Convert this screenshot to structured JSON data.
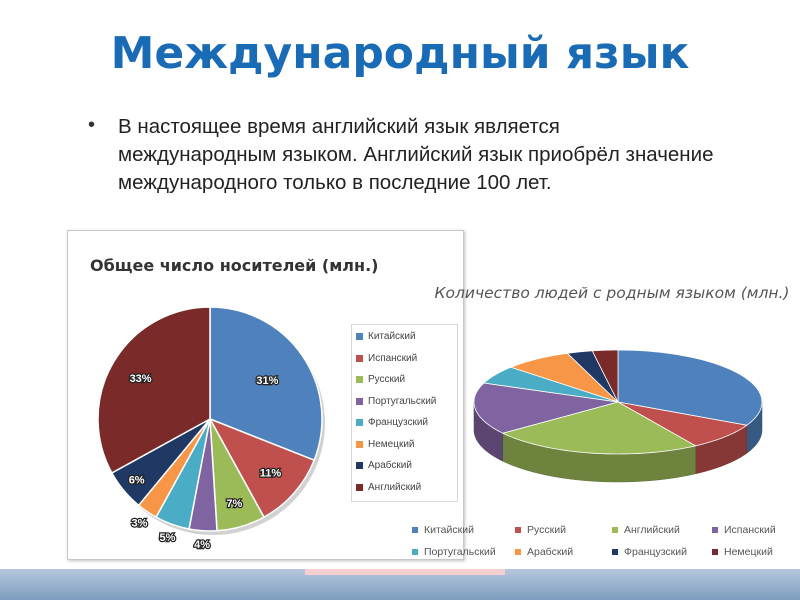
{
  "slide": {
    "title": "Международный язык",
    "bullet": "В настоящее время английский язык является международным языком. Английский язык приобрёл значение международного только в последние 100 лет."
  },
  "chart_data": [
    {
      "type": "pie",
      "title": "Общее число носителей (млн.)",
      "categories": [
        "Китайский",
        "Испанский",
        "Русский",
        "Португальский",
        "Французский",
        "Немецкий",
        "Арабский",
        "Английский"
      ],
      "values": [
        31,
        11,
        7,
        4,
        5,
        3,
        6,
        33
      ],
      "value_labels": [
        "31%",
        "11%",
        "7%",
        "4%",
        "5%",
        "3%",
        "6%",
        "33%"
      ],
      "colors": [
        "#4f81bd",
        "#c0504d",
        "#9bbb59",
        "#8064a2",
        "#4bacc6",
        "#f79646",
        "#1f3864",
        "#7b2a2a"
      ],
      "legend": "right"
    },
    {
      "type": "pie",
      "title": "Количество людей с родным языком (млн.)",
      "categories": [
        "Китайский",
        "Русский",
        "Английский",
        "Испанский",
        "Португальский",
        "Арабский",
        "Французский",
        "Немецкий"
      ],
      "values": [
        34,
        9,
        25,
        17,
        6,
        8,
        3,
        3
      ],
      "colors": [
        "#4f81bd",
        "#c0504d",
        "#9bbb59",
        "#8064a2",
        "#4bacc6",
        "#f79646",
        "#1f3864",
        "#7b2a2a"
      ],
      "legend": "bottom"
    }
  ]
}
